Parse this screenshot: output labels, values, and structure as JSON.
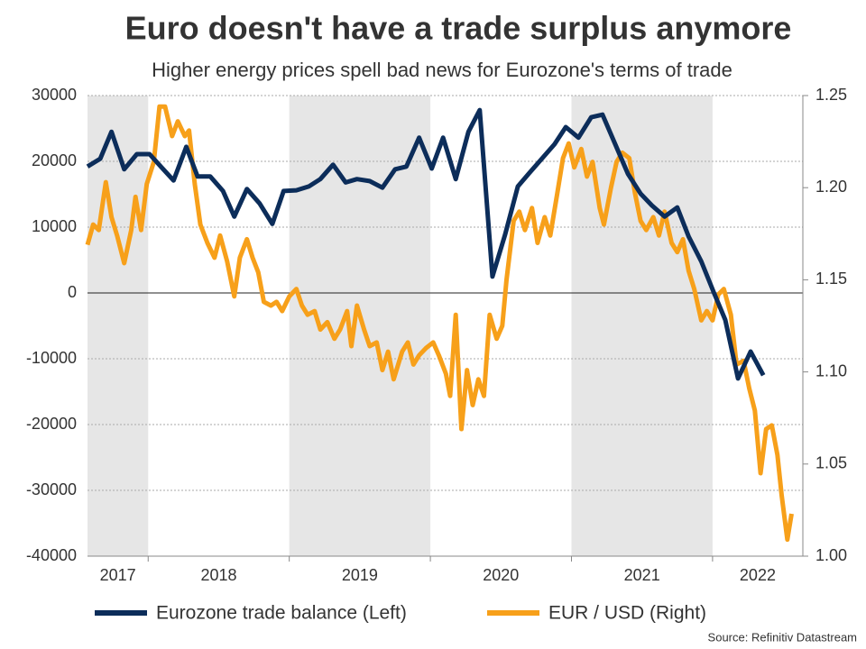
{
  "chart_data": {
    "type": "line",
    "title": "Euro doesn't have a trade surplus anymore",
    "subtitle": "Higher energy prices spell bad news for Eurozone's terms of trade",
    "source": "Source: Refinitiv Datastream",
    "xlim": [
      2017.57,
      2022.64
    ],
    "xticks": [
      2017,
      2018,
      2019,
      2020,
      2021,
      2022
    ],
    "shade_alternate_years": true,
    "ylim": [
      -40000,
      30000
    ],
    "yticks": [
      -40000,
      -30000,
      -20000,
      -10000,
      0,
      10000,
      20000,
      30000
    ],
    "y2lim": [
      1,
      1.25
    ],
    "y2ticks": [
      {
        "value": 1,
        "label": "1.00"
      },
      1.05,
      {
        "value": 1.1,
        "label": "1.10"
      },
      1.15,
      {
        "value": 1.2,
        "label": "1.20"
      },
      1.25
    ],
    "grid": true,
    "legend": "bottom",
    "series": [
      {
        "name": "Eurozone trade balance (Left)",
        "color": "#0c2d5a",
        "x": [
          2017.57,
          2017.66,
          2017.74,
          2017.83,
          2017.92,
          2018.01,
          2018.09,
          2018.18,
          2018.27,
          2018.35,
          2018.44,
          2018.53,
          2018.61,
          2018.7,
          2018.79,
          2018.88,
          2018.96,
          2019.05,
          2019.14,
          2019.22,
          2019.31,
          2019.4,
          2019.48,
          2019.57,
          2019.66,
          2019.75,
          2019.83,
          2019.92,
          2020.01,
          2020.09,
          2020.18,
          2020.27,
          2020.35,
          2020.44,
          2020.53,
          2020.62,
          2020.7,
          2020.79,
          2020.88,
          2020.96,
          2021.05,
          2021.14,
          2021.22,
          2021.31,
          2021.4,
          2021.49,
          2021.57,
          2021.66,
          2021.75,
          2021.83,
          2021.92,
          2022.01,
          2022.09,
          2022.18,
          2022.27,
          2022.36
        ],
        "values": [
          19200,
          20400,
          24500,
          18800,
          21100,
          21100,
          19200,
          17100,
          22200,
          17700,
          17700,
          15500,
          11600,
          15800,
          13600,
          10500,
          15500,
          15600,
          16200,
          17300,
          19500,
          16800,
          17300,
          17000,
          16000,
          18800,
          19200,
          23600,
          18900,
          23600,
          17300,
          24500,
          27800,
          2500,
          8900,
          16200,
          18200,
          20400,
          22600,
          25200,
          23600,
          26700,
          27100,
          22600,
          18100,
          15100,
          13300,
          11600,
          13000,
          8600,
          4800,
          0,
          -4100,
          -13000,
          -8900,
          -12500
        ]
      },
      {
        "name": "EUR / USD (Right)",
        "color": "#f7a01a",
        "axis": "y2",
        "x": [
          2017.57,
          2017.61,
          2017.65,
          2017.7,
          2017.74,
          2017.78,
          2017.83,
          2017.88,
          2017.91,
          2017.95,
          2017.99,
          2018.04,
          2018.08,
          2018.12,
          2018.17,
          2018.21,
          2018.26,
          2018.29,
          2018.33,
          2018.37,
          2018.42,
          2018.47,
          2018.51,
          2018.56,
          2018.61,
          2018.65,
          2018.7,
          2018.74,
          2018.78,
          2018.82,
          2018.87,
          2018.91,
          2018.95,
          2019.0,
          2019.05,
          2019.09,
          2019.13,
          2019.18,
          2019.22,
          2019.27,
          2019.32,
          2019.36,
          2019.41,
          2019.44,
          2019.48,
          2019.53,
          2019.57,
          2019.62,
          2019.66,
          2019.7,
          2019.74,
          2019.8,
          2019.84,
          2019.88,
          2019.92,
          2019.97,
          2020.02,
          2020.06,
          2020.11,
          2020.14,
          2020.18,
          2020.22,
          2020.26,
          2020.3,
          2020.34,
          2020.38,
          2020.42,
          2020.47,
          2020.51,
          2020.54,
          2020.59,
          2020.63,
          2020.67,
          2020.72,
          2020.76,
          2020.81,
          2020.85,
          2020.9,
          2020.94,
          2020.98,
          2021.02,
          2021.07,
          2021.11,
          2021.15,
          2021.2,
          2021.23,
          2021.28,
          2021.32,
          2021.36,
          2021.41,
          2021.45,
          2021.49,
          2021.53,
          2021.58,
          2021.62,
          2021.66,
          2021.71,
          2021.75,
          2021.79,
          2021.83,
          2021.87,
          2021.92,
          2021.96,
          2022.0,
          2022.04,
          2022.08,
          2022.13,
          2022.17,
          2022.22,
          2022.26,
          2022.3,
          2022.34,
          2022.38,
          2022.42,
          2022.46,
          2022.49,
          2022.53,
          2022.56
        ],
        "values": [
          1.169,
          1.18,
          1.177,
          1.203,
          1.184,
          1.174,
          1.159,
          1.177,
          1.195,
          1.177,
          1.202,
          1.214,
          1.244,
          1.244,
          1.228,
          1.236,
          1.228,
          1.231,
          1.202,
          1.18,
          1.17,
          1.162,
          1.174,
          1.16,
          1.141,
          1.162,
          1.172,
          1.162,
          1.154,
          1.138,
          1.136,
          1.138,
          1.133,
          1.141,
          1.145,
          1.136,
          1.131,
          1.133,
          1.123,
          1.127,
          1.118,
          1.123,
          1.133,
          1.114,
          1.136,
          1.123,
          1.114,
          1.116,
          1.101,
          1.111,
          1.096,
          1.111,
          1.116,
          1.104,
          1.109,
          1.113,
          1.116,
          1.109,
          1.099,
          1.087,
          1.131,
          1.069,
          1.101,
          1.082,
          1.096,
          1.087,
          1.131,
          1.118,
          1.125,
          1.15,
          1.182,
          1.187,
          1.177,
          1.189,
          1.17,
          1.184,
          1.174,
          1.197,
          1.216,
          1.224,
          1.211,
          1.221,
          1.206,
          1.214,
          1.189,
          1.18,
          1.2,
          1.214,
          1.219,
          1.216,
          1.197,
          1.182,
          1.177,
          1.184,
          1.174,
          1.187,
          1.17,
          1.165,
          1.172,
          1.155,
          1.145,
          1.128,
          1.133,
          1.128,
          1.142,
          1.145,
          1.131,
          1.104,
          1.106,
          1.091,
          1.079,
          1.045,
          1.069,
          1.071,
          1.055,
          1.033,
          1.009,
          1.023
        ]
      }
    ]
  }
}
